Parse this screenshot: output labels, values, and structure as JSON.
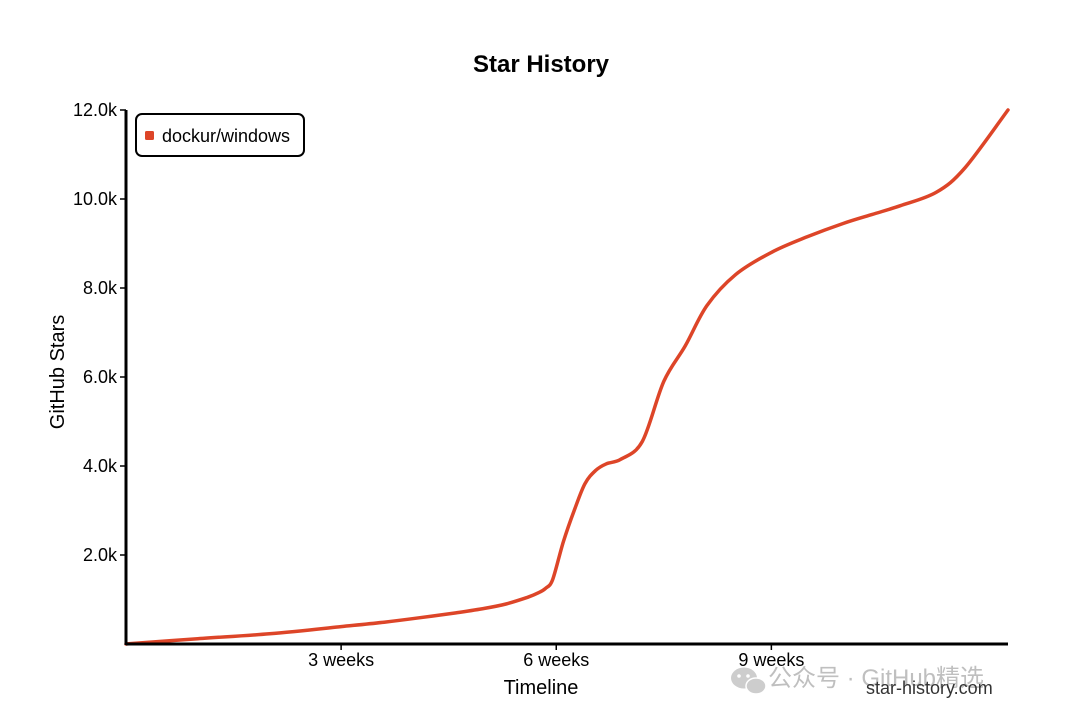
{
  "chart_data": {
    "type": "line",
    "title": "Star History",
    "xlabel": "Timeline",
    "ylabel": "GitHub Stars",
    "x_unit": "weeks",
    "xlim": [
      0,
      12.3
    ],
    "ylim": [
      0,
      12000
    ],
    "x_ticks": [
      {
        "value": 3,
        "label": "3 weeks"
      },
      {
        "value": 6,
        "label": "6 weeks"
      },
      {
        "value": 9,
        "label": "9 weeks"
      }
    ],
    "y_ticks": [
      {
        "value": 2000,
        "label": "2.0k"
      },
      {
        "value": 4000,
        "label": "4.0k"
      },
      {
        "value": 6000,
        "label": "6.0k"
      },
      {
        "value": 8000,
        "label": "8.0k"
      },
      {
        "value": 10000,
        "label": "10.0k"
      },
      {
        "value": 12000,
        "label": "12.0k"
      }
    ],
    "grid": false,
    "legend_position": "top-left",
    "series": [
      {
        "name": "dockur/windows",
        "color": "#dd4528",
        "x": [
          0,
          1,
          2,
          3,
          3.6,
          4.1,
          4.6,
          5.0,
          5.3,
          5.6,
          5.75,
          5.85,
          5.95,
          6.1,
          6.25,
          6.4,
          6.55,
          6.7,
          6.9,
          7.2,
          7.5,
          7.8,
          8.1,
          8.5,
          9.0,
          9.5,
          10.0,
          10.4,
          10.8,
          11.3,
          11.7,
          12.3
        ],
        "y": [
          0,
          120,
          230,
          390,
          490,
          590,
          700,
          800,
          900,
          1050,
          1150,
          1250,
          1450,
          2300,
          3000,
          3600,
          3900,
          4050,
          4150,
          4550,
          5900,
          6700,
          7600,
          8300,
          8800,
          9150,
          9450,
          9650,
          9850,
          10150,
          10700,
          12000
        ]
      }
    ]
  },
  "credit": "star-history.com",
  "watermark": "公众号 · GitHub精选"
}
